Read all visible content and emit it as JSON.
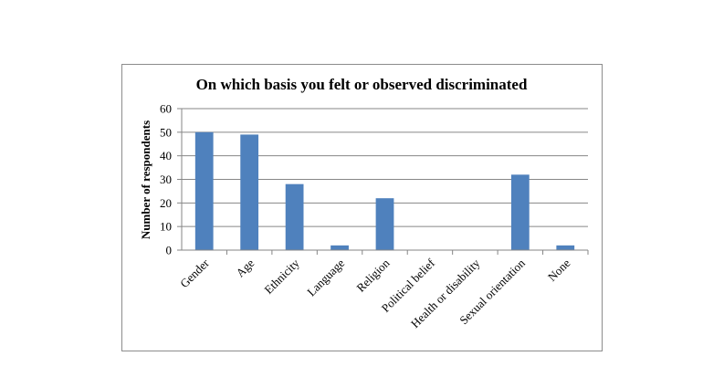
{
  "chart_data": {
    "type": "bar",
    "title": "On which basis you felt or observed discriminated",
    "xlabel": "",
    "ylabel": "Number of respondents",
    "categories": [
      "Gender",
      "Age",
      "Ethnicity",
      "Language",
      "Religion",
      "Political belief",
      "Health or disability",
      "Sexual orientation",
      "None"
    ],
    "values": [
      50,
      49,
      28,
      2,
      22,
      0,
      0,
      32,
      2
    ],
    "ylim": [
      0,
      60
    ],
    "yticks": [
      "0",
      "10",
      "20",
      "30",
      "40",
      "50",
      "60"
    ],
    "grid": true,
    "legend": "none",
    "bar_color": "#4f81bd",
    "grid_color": "#868686"
  }
}
